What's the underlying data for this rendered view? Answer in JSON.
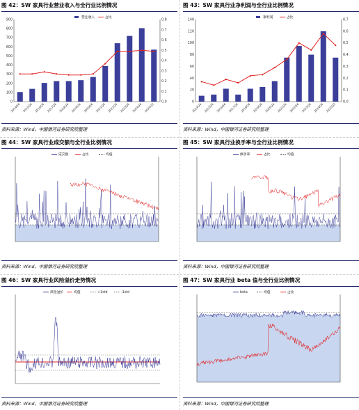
{
  "panels": [
    {
      "title": "图 42：SW 家具行业营业收入与全行业比例情况",
      "source": "资料来源：Wind，中国银河证券研究院整理",
      "chart_data": {
        "type": "bar",
        "legend": [
          "营业收入",
          "占比"
        ],
        "categories": [
          "2014Q4",
          "2015Q4",
          "2016Q4",
          "2017Q4",
          "2018Q4",
          "2019Q4",
          "2020Q4",
          "2021Q4",
          "2022Q4",
          "2023Q4",
          "2024Q4",
          "2025Q3"
        ],
        "series": [
          {
            "values": [
              105,
              140,
              205,
              225,
              225,
              235,
              270,
              390,
              640,
              720,
              805,
              570
            ]
          },
          {
            "values": [
              0.27,
              0.27,
              0.29,
              0.27,
              0.26,
              0.26,
              0.27,
              0.37,
              0.49,
              0.49,
              0.5,
              0.49
            ]
          }
        ],
        "ylim": [
          0,
          900
        ],
        "y2lim": [
          0,
          0.8
        ],
        "yticks": [
          "0",
          "100",
          "200",
          "300",
          "400",
          "500",
          "600",
          "700",
          "800",
          "900"
        ],
        "y2ticks": [
          "0.0",
          "0.1",
          "0.2",
          "0.3",
          "0.4",
          "0.5",
          "0.6",
          "0.7",
          "0.8"
        ],
        "colors": {
          "bar": "#3b3f9a",
          "line": "#e02020"
        }
      }
    },
    {
      "title": "图 43：SW 家具行业净利润与全行业比例情况",
      "source": "资料来源：Wind，中国银河证券研究院整理",
      "chart_data": {
        "type": "bar",
        "legend": [
          "净利润",
          "占比"
        ],
        "categories": [
          "2014Q4",
          "2015Q4",
          "2016Q4",
          "2017Q4",
          "2018Q4",
          "2019Q4",
          "2020Q4",
          "2021Q4",
          "2022Q4",
          "2023Q4",
          "2024Q4",
          "2025Q3"
        ],
        "series": [
          {
            "values": [
              10,
              12,
              22,
              12,
              22,
              25,
              35,
              75,
              95,
              80,
              120,
              75
            ]
          },
          {
            "values": [
              0.17,
              0.14,
              0.19,
              0.16,
              0.22,
              0.23,
              0.29,
              0.36,
              0.5,
              0.44,
              0.58,
              0.48
            ]
          }
        ],
        "ylim": [
          0,
          140
        ],
        "y2lim": [
          0,
          0.7
        ],
        "yticks": [
          "0",
          "20",
          "40",
          "60",
          "80",
          "100",
          "120",
          "140"
        ],
        "y2ticks": [
          "0.0",
          "0.1",
          "0.2",
          "0.3",
          "0.4",
          "0.5",
          "0.6",
          "0.7"
        ],
        "colors": {
          "bar": "#3b3f9a",
          "line": "#e02020"
        }
      }
    },
    {
      "title": "图 44：SW 家具行业成交额与全行业比例情况",
      "source": "资料来源：Wind，中国银河证券研究院整理",
      "chart_data": {
        "type": "line",
        "legend": [
          "成交额",
          "占比",
          "均值"
        ],
        "colors": {
          "blue": "#2b2f8f",
          "red": "#e02020",
          "fill": "#c9d6f0"
        }
      }
    },
    {
      "title": "图 45：SW 家具行业换手率与全行业比例情况",
      "source": "资料来源：Wind，中国银河证券研究院整理",
      "chart_data": {
        "type": "line",
        "legend": [
          "换手率",
          "占比",
          "均值"
        ],
        "colors": {
          "blue": "#2b2f8f",
          "red": "#e02020",
          "fill": "#c9d6f0"
        }
      }
    },
    {
      "title": "图 46：SW 家具行业风险溢价走势情况",
      "source": "资料来源：Wind，中国银河证券研究院整理",
      "chart_data": {
        "type": "line",
        "legend": [
          "风险溢价",
          "均值",
          "+1std",
          "-1std"
        ],
        "colors": {
          "blue": "#2b2f8f",
          "red": "#e02020"
        }
      }
    },
    {
      "title": "图 47：SW 家具行业 beta 值与全行业比例情况",
      "source": "资料来源：Wind，中国银河证券研究院整理",
      "chart_data": {
        "type": "area",
        "legend": [
          "beta",
          "均值",
          "占比"
        ],
        "colors": {
          "blue": "#2b2f8f",
          "red": "#e02020",
          "fill": "#c9d6f0"
        }
      }
    }
  ]
}
